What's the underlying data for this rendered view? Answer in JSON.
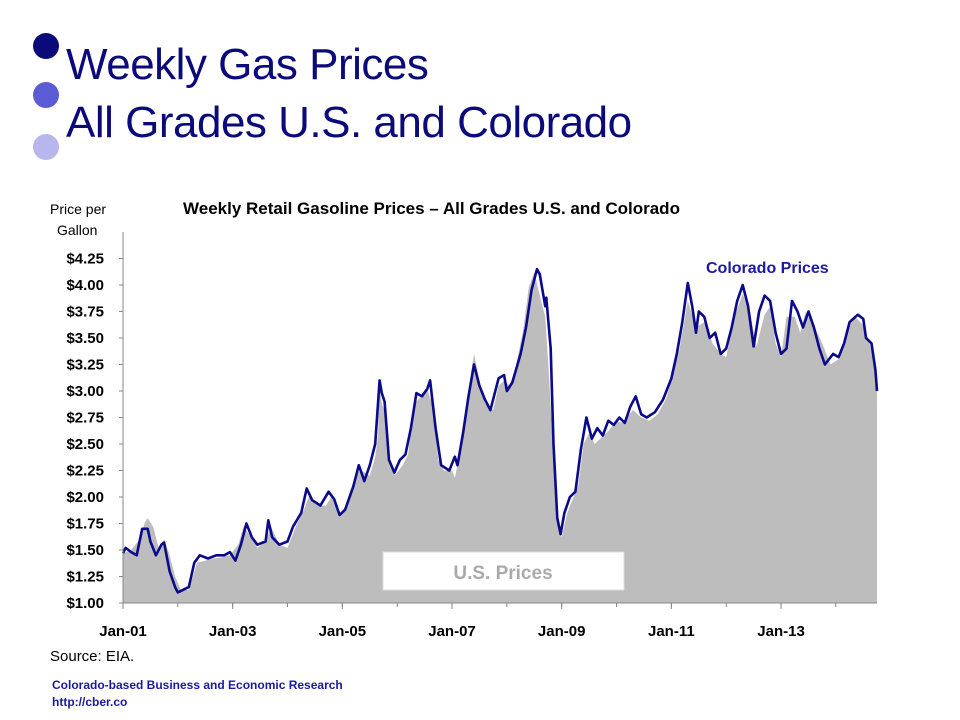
{
  "slide": {
    "title_line1": "Weekly Gas Prices",
    "title_line2": "All Grades U.S. and Colorado",
    "source": "Source: EIA.",
    "footer_org": "Colorado-based Business and Economic Research",
    "footer_url": "http://cber.co"
  },
  "colors": {
    "title": "#0a0a7a",
    "colorado_line": "#0a0a8a",
    "us_area": "#bdbdbd",
    "footer": "#1a1aa0",
    "bullet_dark": "#0a0a7a",
    "bullet_mid": "#5b5bd6",
    "bullet_light": "#b7b7ee"
  },
  "chart_data": {
    "type": "area",
    "title": "Weekly Retail Gasoline Prices – All Grades U.S. and Colorado",
    "ylabel_line1": "Price per",
    "ylabel_line2": "Gallon",
    "ylim": [
      1.0,
      4.5
    ],
    "y_ticks": [
      "$1.00",
      "$1.25",
      "$1.50",
      "$1.75",
      "$2.00",
      "$2.25",
      "$2.50",
      "$2.75",
      "$3.00",
      "$3.25",
      "$3.50",
      "$3.75",
      "$4.00",
      "$4.25"
    ],
    "x_ticks": [
      "Jan-01",
      "Jan-03",
      "Jan-05",
      "Jan-07",
      "Jan-09",
      "Jan-11",
      "Jan-13"
    ],
    "x_tick_years": [
      2001,
      2003,
      2005,
      2007,
      2009,
      2011,
      2013
    ],
    "xlim": [
      2001.0,
      2014.75
    ],
    "grid": false,
    "series": [
      {
        "name": "U.S. Prices",
        "style": "area",
        "points": [
          [
            2001.0,
            1.47
          ],
          [
            2001.15,
            1.5
          ],
          [
            2001.3,
            1.6
          ],
          [
            2001.4,
            1.76
          ],
          [
            2001.45,
            1.8
          ],
          [
            2001.55,
            1.72
          ],
          [
            2001.65,
            1.52
          ],
          [
            2001.75,
            1.6
          ],
          [
            2001.85,
            1.45
          ],
          [
            2001.95,
            1.25
          ],
          [
            2002.05,
            1.13
          ],
          [
            2002.2,
            1.12
          ],
          [
            2002.35,
            1.38
          ],
          [
            2002.5,
            1.4
          ],
          [
            2002.65,
            1.42
          ],
          [
            2002.8,
            1.43
          ],
          [
            2002.95,
            1.45
          ],
          [
            2003.1,
            1.55
          ],
          [
            2003.2,
            1.72
          ],
          [
            2003.3,
            1.65
          ],
          [
            2003.45,
            1.52
          ],
          [
            2003.6,
            1.58
          ],
          [
            2003.7,
            1.72
          ],
          [
            2003.85,
            1.55
          ],
          [
            2004.0,
            1.52
          ],
          [
            2004.15,
            1.72
          ],
          [
            2004.3,
            1.88
          ],
          [
            2004.4,
            2.02
          ],
          [
            2004.55,
            1.92
          ],
          [
            2004.7,
            1.92
          ],
          [
            2004.8,
            2.0
          ],
          [
            2004.95,
            1.82
          ],
          [
            2005.1,
            1.93
          ],
          [
            2005.25,
            2.22
          ],
          [
            2005.35,
            2.25
          ],
          [
            2005.5,
            2.2
          ],
          [
            2005.6,
            2.38
          ],
          [
            2005.65,
            2.58
          ],
          [
            2005.68,
            3.05
          ],
          [
            2005.72,
            2.88
          ],
          [
            2005.78,
            2.8
          ],
          [
            2005.85,
            2.35
          ],
          [
            2005.95,
            2.2
          ],
          [
            2006.1,
            2.3
          ],
          [
            2006.2,
            2.4
          ],
          [
            2006.3,
            2.88
          ],
          [
            2006.45,
            2.95
          ],
          [
            2006.55,
            3.02
          ],
          [
            2006.65,
            2.85
          ],
          [
            2006.75,
            2.35
          ],
          [
            2006.85,
            2.25
          ],
          [
            2007.0,
            2.25
          ],
          [
            2007.05,
            2.18
          ],
          [
            2007.15,
            2.42
          ],
          [
            2007.25,
            2.8
          ],
          [
            2007.35,
            3.18
          ],
          [
            2007.4,
            3.35
          ],
          [
            2007.5,
            3.1
          ],
          [
            2007.6,
            2.88
          ],
          [
            2007.75,
            2.82
          ],
          [
            2007.85,
            3.05
          ],
          [
            2007.95,
            3.1
          ],
          [
            2008.05,
            3.05
          ],
          [
            2008.15,
            3.2
          ],
          [
            2008.3,
            3.58
          ],
          [
            2008.4,
            3.98
          ],
          [
            2008.5,
            4.12
          ],
          [
            2008.6,
            3.9
          ],
          [
            2008.7,
            3.7
          ],
          [
            2008.75,
            3.3
          ],
          [
            2008.85,
            2.4
          ],
          [
            2008.95,
            1.7
          ],
          [
            2009.0,
            1.62
          ],
          [
            2009.1,
            1.85
          ],
          [
            2009.2,
            1.98
          ],
          [
            2009.3,
            2.1
          ],
          [
            2009.4,
            2.5
          ],
          [
            2009.5,
            2.6
          ],
          [
            2009.6,
            2.5
          ],
          [
            2009.7,
            2.55
          ],
          [
            2009.85,
            2.62
          ],
          [
            2010.0,
            2.72
          ],
          [
            2010.1,
            2.7
          ],
          [
            2010.3,
            2.82
          ],
          [
            2010.45,
            2.75
          ],
          [
            2010.6,
            2.72
          ],
          [
            2010.75,
            2.78
          ],
          [
            2010.9,
            2.92
          ],
          [
            2011.0,
            3.1
          ],
          [
            2011.15,
            3.4
          ],
          [
            2011.3,
            3.85
          ],
          [
            2011.45,
            3.6
          ],
          [
            2011.6,
            3.65
          ],
          [
            2011.75,
            3.45
          ],
          [
            2011.9,
            3.35
          ],
          [
            2012.0,
            3.32
          ],
          [
            2012.15,
            3.7
          ],
          [
            2012.3,
            3.92
          ],
          [
            2012.45,
            3.7
          ],
          [
            2012.55,
            3.42
          ],
          [
            2012.7,
            3.72
          ],
          [
            2012.8,
            3.8
          ],
          [
            2012.9,
            3.45
          ],
          [
            2013.0,
            3.32
          ],
          [
            2013.1,
            3.7
          ],
          [
            2013.25,
            3.7
          ],
          [
            2013.35,
            3.55
          ],
          [
            2013.45,
            3.75
          ],
          [
            2013.6,
            3.62
          ],
          [
            2013.75,
            3.45
          ],
          [
            2013.9,
            3.25
          ],
          [
            2014.05,
            3.3
          ],
          [
            2014.2,
            3.58
          ],
          [
            2014.35,
            3.7
          ],
          [
            2014.5,
            3.62
          ],
          [
            2014.6,
            3.48
          ],
          [
            2014.7,
            3.25
          ],
          [
            2014.75,
            3.0
          ]
        ]
      },
      {
        "name": "Colorado Prices",
        "style": "line",
        "points": [
          [
            2001.0,
            1.47
          ],
          [
            2001.05,
            1.52
          ],
          [
            2001.15,
            1.48
          ],
          [
            2001.25,
            1.45
          ],
          [
            2001.35,
            1.7
          ],
          [
            2001.45,
            1.7
          ],
          [
            2001.5,
            1.58
          ],
          [
            2001.6,
            1.45
          ],
          [
            2001.7,
            1.55
          ],
          [
            2001.75,
            1.57
          ],
          [
            2001.85,
            1.3
          ],
          [
            2001.95,
            1.15
          ],
          [
            2002.0,
            1.1
          ],
          [
            2002.2,
            1.15
          ],
          [
            2002.3,
            1.38
          ],
          [
            2002.4,
            1.45
          ],
          [
            2002.55,
            1.42
          ],
          [
            2002.7,
            1.45
          ],
          [
            2002.85,
            1.45
          ],
          [
            2002.95,
            1.48
          ],
          [
            2003.05,
            1.4
          ],
          [
            2003.15,
            1.55
          ],
          [
            2003.25,
            1.75
          ],
          [
            2003.35,
            1.62
          ],
          [
            2003.45,
            1.55
          ],
          [
            2003.6,
            1.58
          ],
          [
            2003.65,
            1.78
          ],
          [
            2003.72,
            1.62
          ],
          [
            2003.85,
            1.55
          ],
          [
            2004.0,
            1.58
          ],
          [
            2004.1,
            1.72
          ],
          [
            2004.25,
            1.85
          ],
          [
            2004.35,
            2.08
          ],
          [
            2004.45,
            1.97
          ],
          [
            2004.6,
            1.92
          ],
          [
            2004.75,
            2.05
          ],
          [
            2004.85,
            1.98
          ],
          [
            2004.95,
            1.83
          ],
          [
            2005.05,
            1.88
          ],
          [
            2005.2,
            2.1
          ],
          [
            2005.3,
            2.3
          ],
          [
            2005.4,
            2.15
          ],
          [
            2005.5,
            2.3
          ],
          [
            2005.6,
            2.5
          ],
          [
            2005.68,
            3.1
          ],
          [
            2005.72,
            2.98
          ],
          [
            2005.77,
            2.9
          ],
          [
            2005.85,
            2.35
          ],
          [
            2005.95,
            2.23
          ],
          [
            2006.05,
            2.35
          ],
          [
            2006.15,
            2.4
          ],
          [
            2006.25,
            2.65
          ],
          [
            2006.35,
            2.98
          ],
          [
            2006.45,
            2.95
          ],
          [
            2006.55,
            3.02
          ],
          [
            2006.6,
            3.1
          ],
          [
            2006.7,
            2.65
          ],
          [
            2006.8,
            2.3
          ],
          [
            2006.95,
            2.25
          ],
          [
            2007.05,
            2.38
          ],
          [
            2007.1,
            2.3
          ],
          [
            2007.2,
            2.6
          ],
          [
            2007.3,
            2.95
          ],
          [
            2007.4,
            3.25
          ],
          [
            2007.5,
            3.05
          ],
          [
            2007.6,
            2.92
          ],
          [
            2007.7,
            2.82
          ],
          [
            2007.85,
            3.12
          ],
          [
            2007.95,
            3.15
          ],
          [
            2008.0,
            3.0
          ],
          [
            2008.1,
            3.08
          ],
          [
            2008.25,
            3.35
          ],
          [
            2008.35,
            3.6
          ],
          [
            2008.45,
            3.95
          ],
          [
            2008.55,
            4.15
          ],
          [
            2008.6,
            4.1
          ],
          [
            2008.7,
            3.8
          ],
          [
            2008.72,
            3.88
          ],
          [
            2008.8,
            3.4
          ],
          [
            2008.85,
            2.5
          ],
          [
            2008.92,
            1.8
          ],
          [
            2008.98,
            1.65
          ],
          [
            2009.05,
            1.85
          ],
          [
            2009.15,
            2.0
          ],
          [
            2009.25,
            2.05
          ],
          [
            2009.35,
            2.45
          ],
          [
            2009.45,
            2.75
          ],
          [
            2009.55,
            2.55
          ],
          [
            2009.65,
            2.65
          ],
          [
            2009.75,
            2.58
          ],
          [
            2009.85,
            2.72
          ],
          [
            2009.95,
            2.68
          ],
          [
            2010.05,
            2.75
          ],
          [
            2010.15,
            2.7
          ],
          [
            2010.25,
            2.85
          ],
          [
            2010.35,
            2.95
          ],
          [
            2010.45,
            2.78
          ],
          [
            2010.55,
            2.75
          ],
          [
            2010.7,
            2.8
          ],
          [
            2010.85,
            2.92
          ],
          [
            2011.0,
            3.12
          ],
          [
            2011.1,
            3.35
          ],
          [
            2011.2,
            3.65
          ],
          [
            2011.3,
            4.02
          ],
          [
            2011.38,
            3.8
          ],
          [
            2011.45,
            3.55
          ],
          [
            2011.5,
            3.75
          ],
          [
            2011.6,
            3.7
          ],
          [
            2011.7,
            3.5
          ],
          [
            2011.8,
            3.55
          ],
          [
            2011.9,
            3.35
          ],
          [
            2012.0,
            3.4
          ],
          [
            2012.1,
            3.6
          ],
          [
            2012.2,
            3.85
          ],
          [
            2012.3,
            4.0
          ],
          [
            2012.4,
            3.8
          ],
          [
            2012.5,
            3.42
          ],
          [
            2012.6,
            3.75
          ],
          [
            2012.7,
            3.9
          ],
          [
            2012.8,
            3.85
          ],
          [
            2012.9,
            3.55
          ],
          [
            2013.0,
            3.35
          ],
          [
            2013.1,
            3.4
          ],
          [
            2013.2,
            3.85
          ],
          [
            2013.3,
            3.75
          ],
          [
            2013.4,
            3.6
          ],
          [
            2013.5,
            3.75
          ],
          [
            2013.6,
            3.6
          ],
          [
            2013.7,
            3.4
          ],
          [
            2013.8,
            3.25
          ],
          [
            2013.95,
            3.35
          ],
          [
            2014.05,
            3.32
          ],
          [
            2014.15,
            3.45
          ],
          [
            2014.25,
            3.65
          ],
          [
            2014.4,
            3.72
          ],
          [
            2014.5,
            3.68
          ],
          [
            2014.55,
            3.5
          ],
          [
            2014.65,
            3.45
          ],
          [
            2014.72,
            3.2
          ],
          [
            2014.75,
            3.0
          ]
        ]
      }
    ],
    "annotations": [
      {
        "text": "Colorado Prices",
        "color": "#1a1aa0",
        "series": "Colorado Prices"
      },
      {
        "text": "U.S. Prices",
        "color": "#aaaaaa",
        "series": "U.S. Prices",
        "boxed": true
      }
    ]
  }
}
